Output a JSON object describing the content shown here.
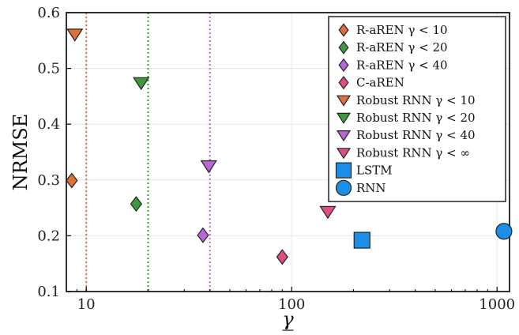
{
  "chart_data": {
    "type": "scatter",
    "xlabel": "γ",
    "ylabel": "NRMSE",
    "xscale": "log",
    "xlim": [
      8,
      1150
    ],
    "ylim": [
      0.1,
      0.6
    ],
    "x_ticks": [
      10,
      100,
      1000
    ],
    "x_tick_labels": [
      "10",
      "100",
      "1000"
    ],
    "y_ticks": [
      0.1,
      0.2,
      0.3,
      0.4,
      0.5,
      0.6
    ],
    "y_tick_labels": [
      "0.1",
      "0.2",
      "0.3",
      "0.4",
      "0.5",
      "0.6"
    ],
    "grid": true,
    "legend_position": "top-right",
    "reference_lines": [
      {
        "x": 10,
        "color": "#e0703a",
        "style": "dotted"
      },
      {
        "x": 20,
        "color": "#2ea02e",
        "style": "dotted"
      },
      {
        "x": 40,
        "color": "#b866d8",
        "style": "dotted"
      }
    ],
    "series": [
      {
        "name": "R-aREN γ < 10",
        "marker": "diamond",
        "color": "#e0703a",
        "x": 8.5,
        "y": 0.299
      },
      {
        "name": "R-aREN γ < 20",
        "marker": "diamond",
        "color": "#3c9a3c",
        "x": 17.5,
        "y": 0.257
      },
      {
        "name": "R-aREN γ < 40",
        "marker": "diamond",
        "color": "#b866d8",
        "x": 37,
        "y": 0.201
      },
      {
        "name": "C-aREN",
        "marker": "diamond",
        "color": "#e0507e",
        "x": 90,
        "y": 0.162
      },
      {
        "name": "Robust RNN γ < 10",
        "marker": "triangle-down",
        "color": "#e0703a",
        "x": 8.8,
        "y": 0.561
      },
      {
        "name": "Robust RNN γ < 20",
        "marker": "triangle-down",
        "color": "#3c9a3c",
        "x": 18.5,
        "y": 0.474
      },
      {
        "name": "Robust RNN γ < 40",
        "marker": "triangle-down",
        "color": "#b866d8",
        "x": 39.5,
        "y": 0.325
      },
      {
        "name": "Robust RNN γ < ∞",
        "marker": "triangle-down",
        "color": "#e0507e",
        "x": 150,
        "y": 0.243
      },
      {
        "name": "LSTM",
        "marker": "square",
        "color": "#1b8fe8",
        "x": 220,
        "y": 0.192
      },
      {
        "name": "RNN",
        "marker": "circle",
        "color": "#1b8fe8",
        "x": 1080,
        "y": 0.208
      }
    ]
  }
}
